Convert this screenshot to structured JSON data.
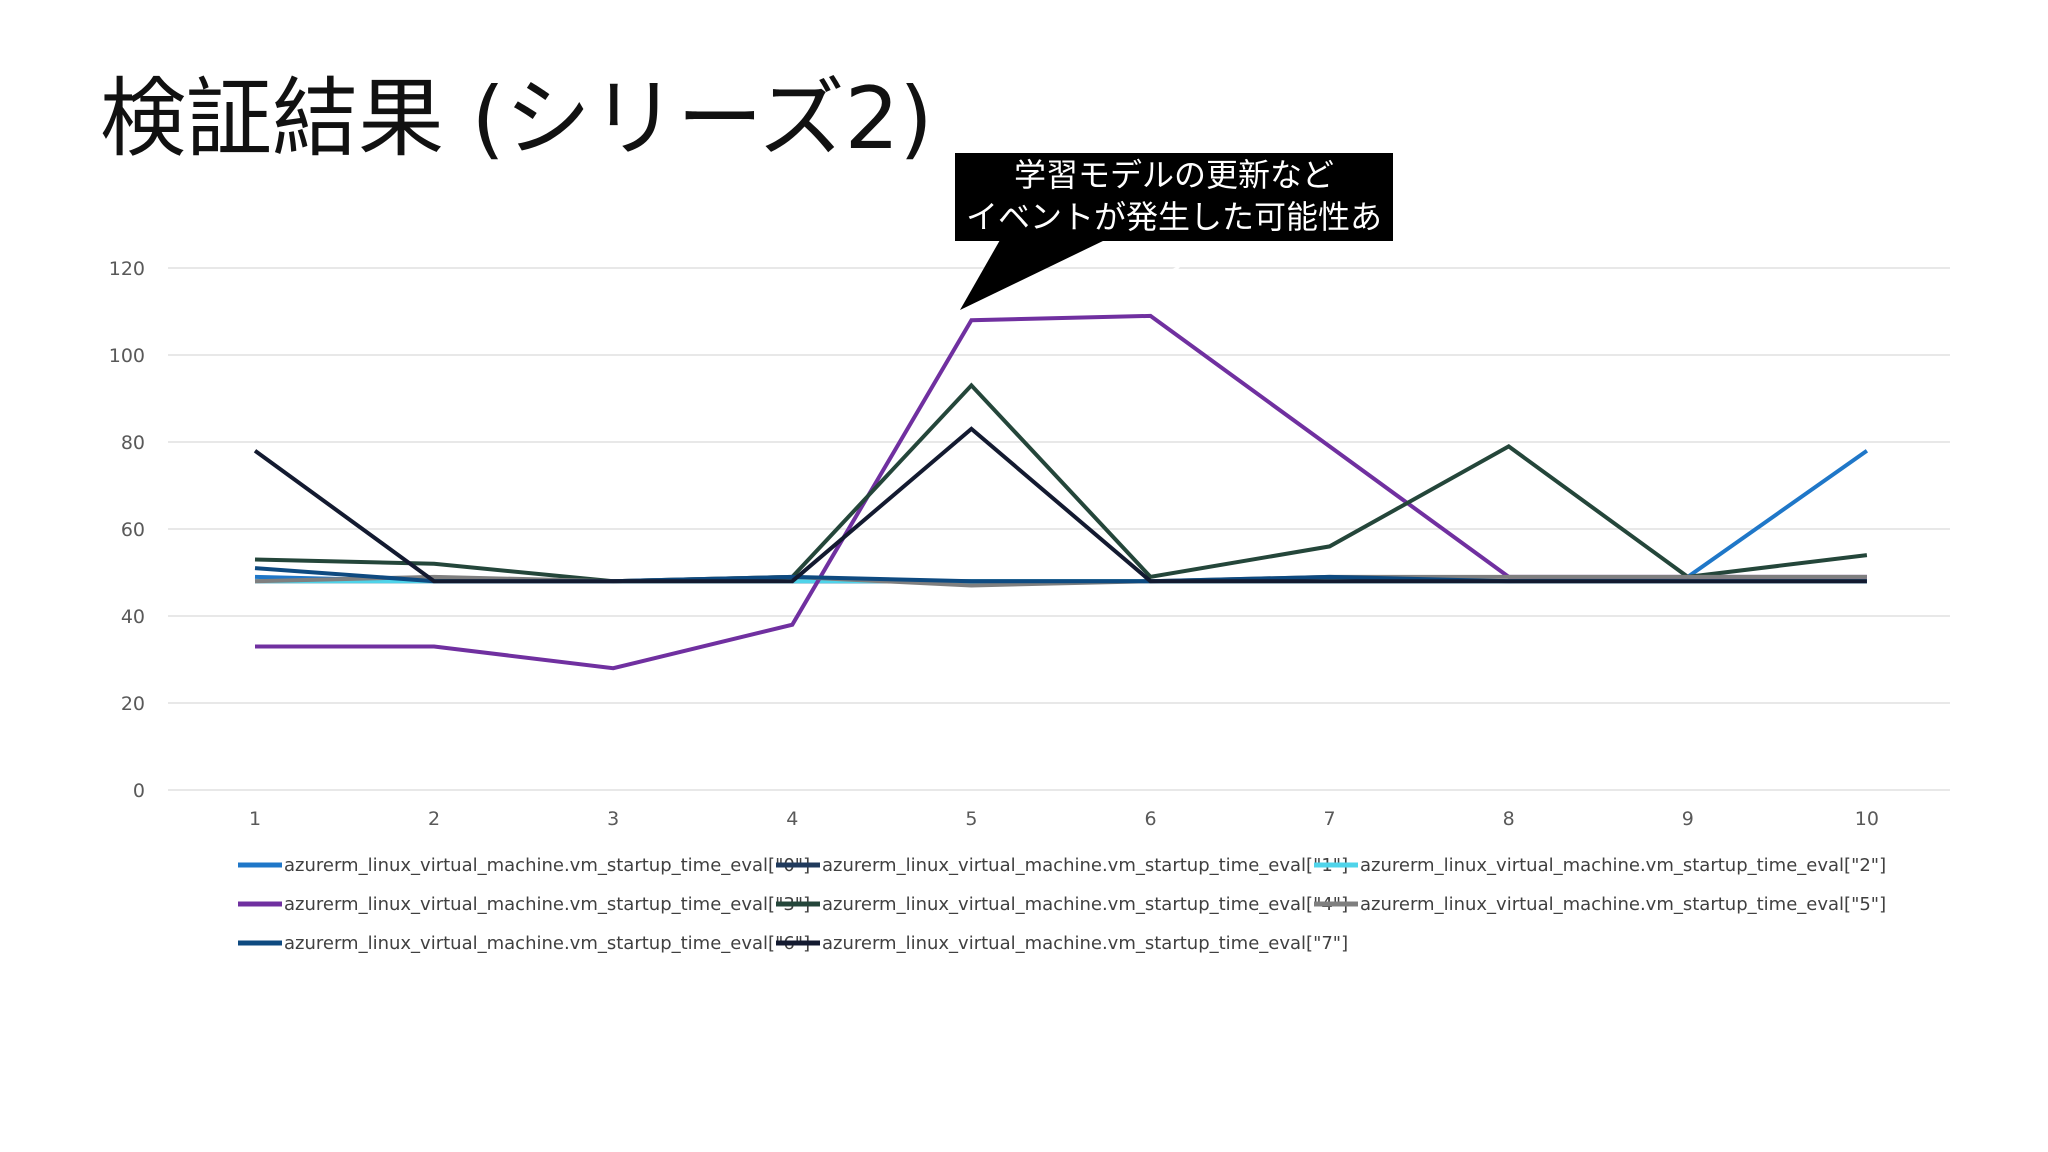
{
  "slide": {
    "title": "検証結果 (シリーズ2)"
  },
  "annotation": {
    "line1": "学習モデルの更新など",
    "line2": "イベントが発生した可能性あり"
  },
  "chart_data": {
    "type": "line",
    "title": "",
    "xlabel": "",
    "ylabel": "",
    "x": [
      1,
      2,
      3,
      4,
      5,
      6,
      7,
      8,
      9,
      10
    ],
    "ylim": [
      0,
      120
    ],
    "yticks": [
      0,
      20,
      40,
      60,
      80,
      100,
      120
    ],
    "grid": true,
    "legend_position": "bottom",
    "series": [
      {
        "name": "azurerm_linux_virtual_machine.vm_startup_time_eval[\"0\"]",
        "color": "#1f77c8",
        "values": [
          49,
          48,
          48,
          48,
          48,
          48,
          48,
          48,
          49,
          78
        ]
      },
      {
        "name": "azurerm_linux_virtual_machine.vm_startup_time_eval[\"1\"]",
        "color": "#203a5c",
        "values": [
          48,
          48,
          48,
          48,
          48,
          48,
          48,
          48,
          48,
          48
        ]
      },
      {
        "name": "azurerm_linux_virtual_machine.vm_startup_time_eval[\"2\"]",
        "color": "#4fd4ea",
        "values": [
          48,
          48,
          48,
          48,
          48,
          48,
          48,
          48,
          48,
          48
        ]
      },
      {
        "name": "azurerm_linux_virtual_machine.vm_startup_time_eval[\"3\"]",
        "color": "#7030a0",
        "values": [
          33,
          33,
          28,
          38,
          108,
          109,
          79,
          49,
          49,
          49
        ]
      },
      {
        "name": "azurerm_linux_virtual_machine.vm_startup_time_eval[\"4\"]",
        "color": "#24463a",
        "values": [
          53,
          52,
          48,
          49,
          93,
          49,
          56,
          79,
          49,
          54
        ]
      },
      {
        "name": "azurerm_linux_virtual_machine.vm_startup_time_eval[\"5\"]",
        "color": "#7f7f7f",
        "values": [
          48,
          49,
          48,
          49,
          47,
          48,
          49,
          49,
          49,
          49
        ]
      },
      {
        "name": "azurerm_linux_virtual_machine.vm_startup_time_eval[\"6\"]",
        "color": "#0e4a80",
        "values": [
          51,
          48,
          48,
          49,
          48,
          48,
          49,
          48,
          48,
          48
        ]
      },
      {
        "name": "azurerm_linux_virtual_machine.vm_startup_time_eval[\"7\"]",
        "color": "#131a30",
        "values": [
          78,
          48,
          48,
          48,
          83,
          48,
          48,
          48,
          48,
          48
        ]
      }
    ]
  }
}
